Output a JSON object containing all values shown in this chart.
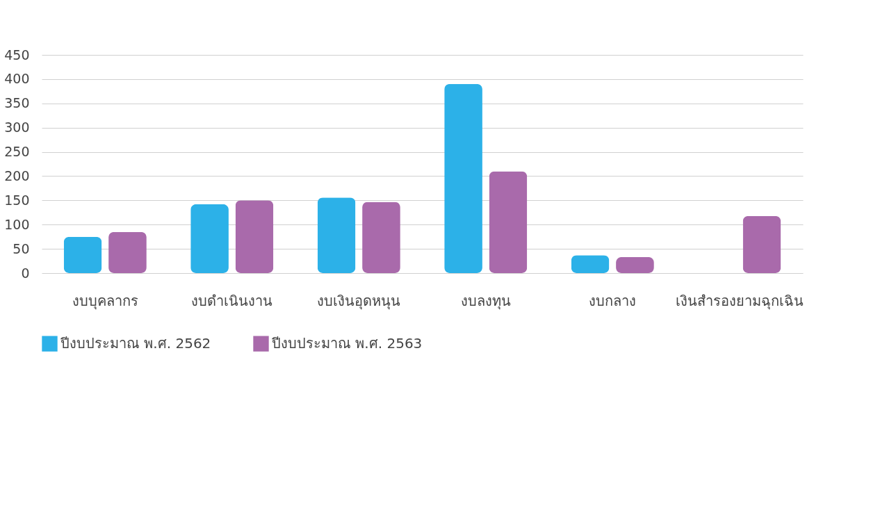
{
  "chart_data": {
    "type": "bar",
    "categories": [
      "งบบุคลากร",
      "งบดำเนินงาน",
      "งบเงินอุดหนุน",
      "งบลงทุน",
      "งบกลาง",
      "เงินสำรองยามฉุกเฉิน"
    ],
    "series": [
      {
        "name": "ปีงบประมาณ พ.ศ. 2562",
        "color": "#2cb1e8",
        "values": [
          75,
          142,
          156,
          390,
          37,
          null
        ]
      },
      {
        "name": "ปีงบประมาณ พ.ศ. 2563",
        "color": "#a96aab",
        "values": [
          85,
          150,
          147,
          210,
          33,
          118
        ]
      }
    ],
    "ylim": [
      0,
      450
    ],
    "yticks": [
      0,
      50,
      100,
      150,
      200,
      250,
      300,
      350,
      400,
      450
    ],
    "grid": "y",
    "legend": "bottom"
  }
}
